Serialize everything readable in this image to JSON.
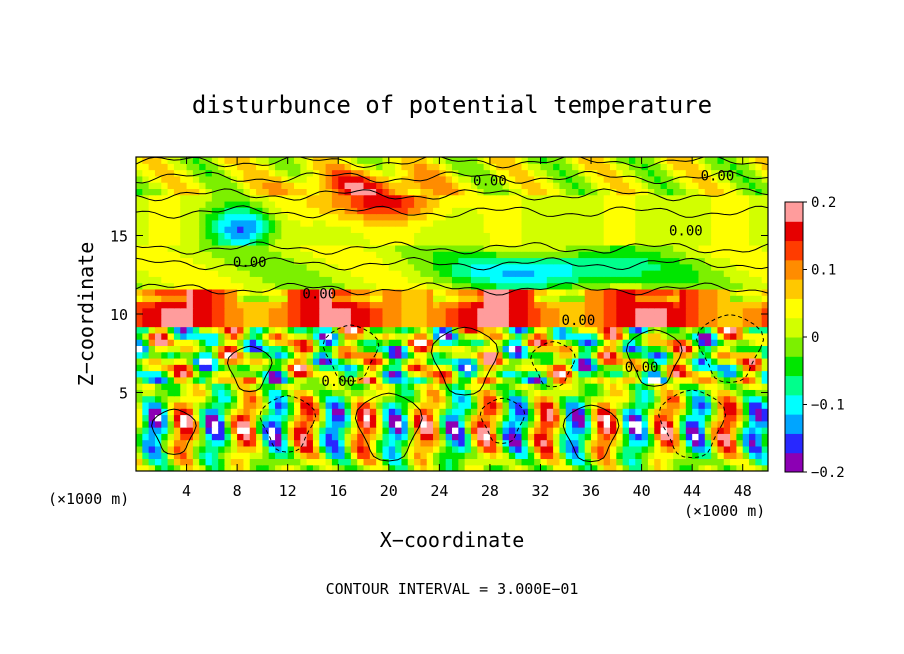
{
  "chart_data": {
    "type": "heatmap",
    "title": "disturbunce of potential temperature",
    "xlabel": "X−coordinate",
    "ylabel": "Z−coordinate",
    "x_unit_left": "(×1000 m)",
    "x_unit_right": "(×1000 m)",
    "xlim": [
      0,
      50
    ],
    "ylim": [
      0,
      20
    ],
    "x_ticks": [
      4,
      8,
      12,
      16,
      20,
      24,
      28,
      32,
      36,
      40,
      44,
      48
    ],
    "y_ticks": [
      5,
      10,
      15
    ],
    "colorbar": {
      "range": [
        -0.2,
        0.2
      ],
      "tick_labels": [
        "0.2",
        "0.1",
        "0",
        "−0.1",
        "−0.2"
      ],
      "colors": [
        "#8c00b4",
        "#2828ff",
        "#00a5ff",
        "#00ffff",
        "#00ff8c",
        "#00e600",
        "#7cf000",
        "#d2ff00",
        "#ffff00",
        "#ffc800",
        "#ff8c00",
        "#ff3c00",
        "#e60000",
        "#ff9c9c"
      ]
    },
    "contour_labels": [
      "0.00",
      "0.00",
      "0.00",
      "0.00",
      "0.00",
      "0.00",
      "0.00",
      "0.00"
    ],
    "footer": "CONTOUR INTERVAL = 3.000E−01"
  }
}
